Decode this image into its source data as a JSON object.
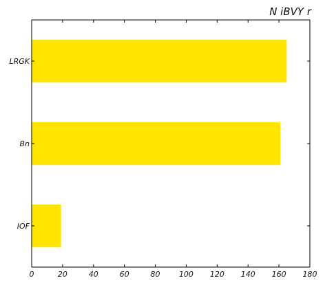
{
  "chart_data": {
    "type": "bar",
    "orientation": "horizontal",
    "title": "N iBVY  r",
    "xlabel": "",
    "ylabel": "",
    "categories": [
      "IOF",
      "Bn",
      "LRGK"
    ],
    "values": [
      19,
      161,
      165
    ],
    "xlim": [
      0,
      180
    ],
    "xticks": [
      0,
      20,
      40,
      60,
      80,
      100,
      120,
      140,
      160,
      180
    ],
    "grid": false,
    "legend": false,
    "bar_color": "#FFE500"
  }
}
